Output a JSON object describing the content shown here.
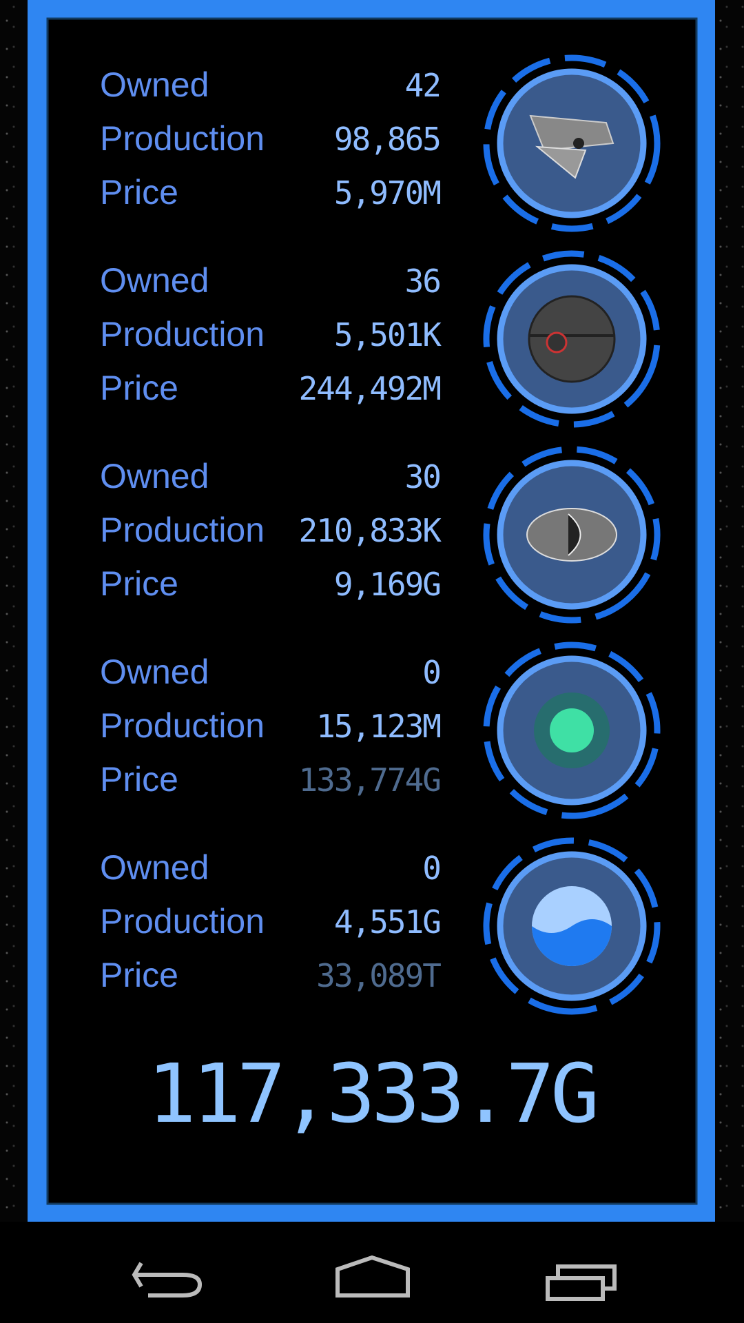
{
  "labels": {
    "owned": "Owned",
    "production": "Production",
    "price": "Price"
  },
  "items": [
    {
      "owned": 42,
      "production": "98,865",
      "price": "5,970M",
      "affordable": true
    },
    {
      "owned": 36,
      "production": "5,501K",
      "price": "244,492M",
      "affordable": true
    },
    {
      "owned": 30,
      "production": "210,833K",
      "price": "9,169G",
      "affordable": true
    },
    {
      "owned": 0,
      "production": "15,123M",
      "price": "133,774G",
      "affordable": false
    },
    {
      "owned": 0,
      "production": "4,551G",
      "price": "33,089T",
      "affordable": false
    }
  ],
  "total": "117,333.7G"
}
